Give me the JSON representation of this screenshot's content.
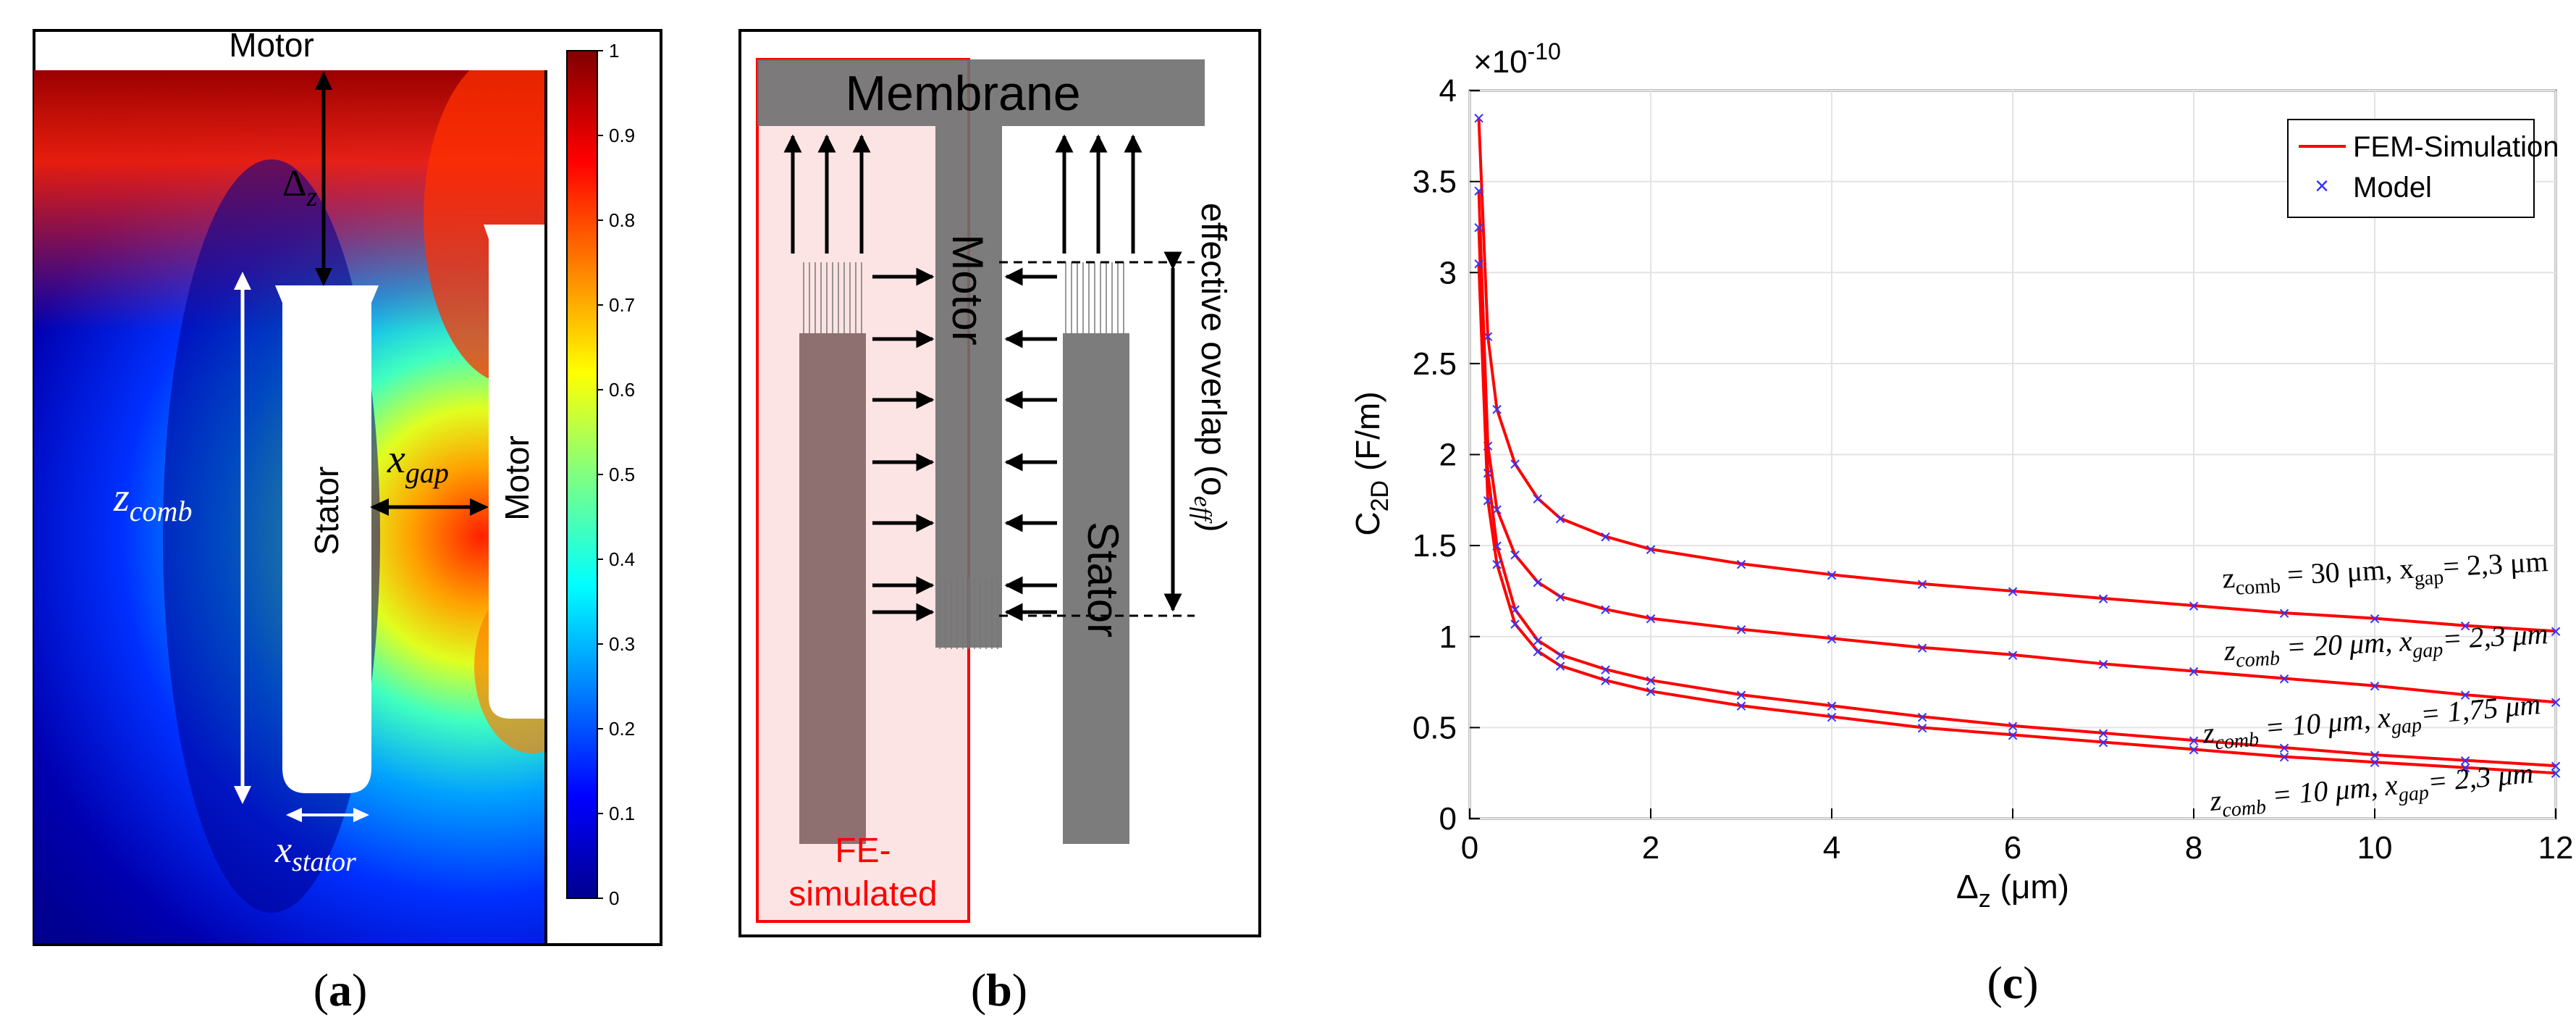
{
  "panel_a": {
    "label": "a",
    "motor_top_label": "Motor",
    "motor_right_label": "Motor",
    "stator_label": "Stator",
    "delta_z_symbol": "Δ",
    "delta_z_sub": "z",
    "z_comb_main": "z",
    "z_comb_sub": "comb",
    "x_gap_main": "x",
    "x_gap_sub": "gap",
    "x_stator_main": "x",
    "x_stator_sub": "stator",
    "colorbar_ticks": [
      "1",
      "0.9",
      "0.8",
      "0.7",
      "0.6",
      "0.5",
      "0.4",
      "0.3",
      "0.2",
      "0.1",
      "0"
    ],
    "colormap": [
      "#00008f",
      "#0000ff",
      "#0080ff",
      "#00ffff",
      "#80ff80",
      "#ffff00",
      "#ff8000",
      "#ff0000",
      "#800000"
    ]
  },
  "panel_b": {
    "label": "b",
    "membrane_label": "Membrane",
    "motor_label": "Motor",
    "stator_label": "Stator",
    "overlap_label": "effective overlap (o",
    "overlap_sub": "eff",
    "overlap_close": ")",
    "fe_label_line1": "FE-",
    "fe_label_line2": "simulated",
    "fe_color": "#ff0000"
  },
  "panel_c": {
    "label": "c",
    "legend_fem": "FEM-Simulation",
    "legend_model": "Model",
    "exponent_label": "×10",
    "exponent_power": "-10",
    "ylabel_main": "C",
    "ylabel_sub": "2D",
    "ylabel_unit": "(F/m)",
    "xlabel_main": "Δ",
    "xlabel_sub": "z",
    "xlabel_unit": "(μm)",
    "curve_labels": [
      {
        "zname": "z",
        "zsub": "comb",
        "zval": "= 30 μm,",
        "xname": "x",
        "xsub": "gap",
        "xval": "= 2,3 μm"
      },
      {
        "zname": "z",
        "zsub": "comb",
        "zval": "= 20 μm,",
        "xname": "x",
        "xsub": "gap",
        "xval": "= 2,3 μm"
      },
      {
        "zname": "z",
        "zsub": "comb",
        "zval": "= 10 μm,",
        "xname": "x",
        "xsub": "gap",
        "xval": "= 1,75 μm"
      },
      {
        "zname": "z",
        "zsub": "comb",
        "zval": "= 10 μm,",
        "xname": "x",
        "xsub": "gap",
        "xval": "= 2,3 μm"
      }
    ],
    "fem_color": "#ff0000",
    "model_color": "#3333ff"
  },
  "chart_data": {
    "type": "line",
    "title": "",
    "xlabel": "Δz (μm)",
    "ylabel": "C2D (F/m)",
    "y_scale_note": "×10^-10",
    "xlim": [
      0,
      12
    ],
    "ylim": [
      0,
      4
    ],
    "xticks": [
      0,
      2,
      4,
      6,
      8,
      10,
      12
    ],
    "yticks": [
      0,
      0.5,
      1,
      1.5,
      2,
      2.5,
      3,
      3.5,
      4
    ],
    "grid": true,
    "legend": [
      "FEM-Simulation",
      "Model"
    ],
    "legend_position": "top-right",
    "x": [
      0.1,
      0.2,
      0.3,
      0.5,
      0.75,
      1,
      1.5,
      2,
      3,
      4,
      5,
      6,
      7,
      8,
      9,
      10,
      11,
      12
    ],
    "series": [
      {
        "name": "zcomb = 30 μm, xgap = 2,3 μm",
        "values": [
          3.85,
          2.65,
          2.25,
          1.95,
          1.76,
          1.65,
          1.55,
          1.48,
          1.4,
          1.34,
          1.29,
          1.25,
          1.21,
          1.17,
          1.13,
          1.1,
          1.06,
          1.03
        ]
      },
      {
        "name": "zcomb = 20 μm, xgap = 2,3 μm",
        "values": [
          3.45,
          2.05,
          1.7,
          1.45,
          1.3,
          1.22,
          1.15,
          1.1,
          1.04,
          0.99,
          0.94,
          0.9,
          0.85,
          0.81,
          0.77,
          0.73,
          0.68,
          0.64
        ]
      },
      {
        "name": "zcomb = 10 μm, xgap = 1,75 μm",
        "values": [
          3.25,
          1.9,
          1.5,
          1.15,
          0.98,
          0.9,
          0.82,
          0.76,
          0.68,
          0.62,
          0.56,
          0.51,
          0.47,
          0.43,
          0.39,
          0.35,
          0.32,
          0.29
        ]
      },
      {
        "name": "zcomb = 10 μm, xgap = 2,3 μm",
        "values": [
          3.05,
          1.75,
          1.4,
          1.07,
          0.92,
          0.84,
          0.76,
          0.7,
          0.62,
          0.56,
          0.5,
          0.46,
          0.42,
          0.38,
          0.34,
          0.31,
          0.28,
          0.25
        ]
      }
    ]
  }
}
